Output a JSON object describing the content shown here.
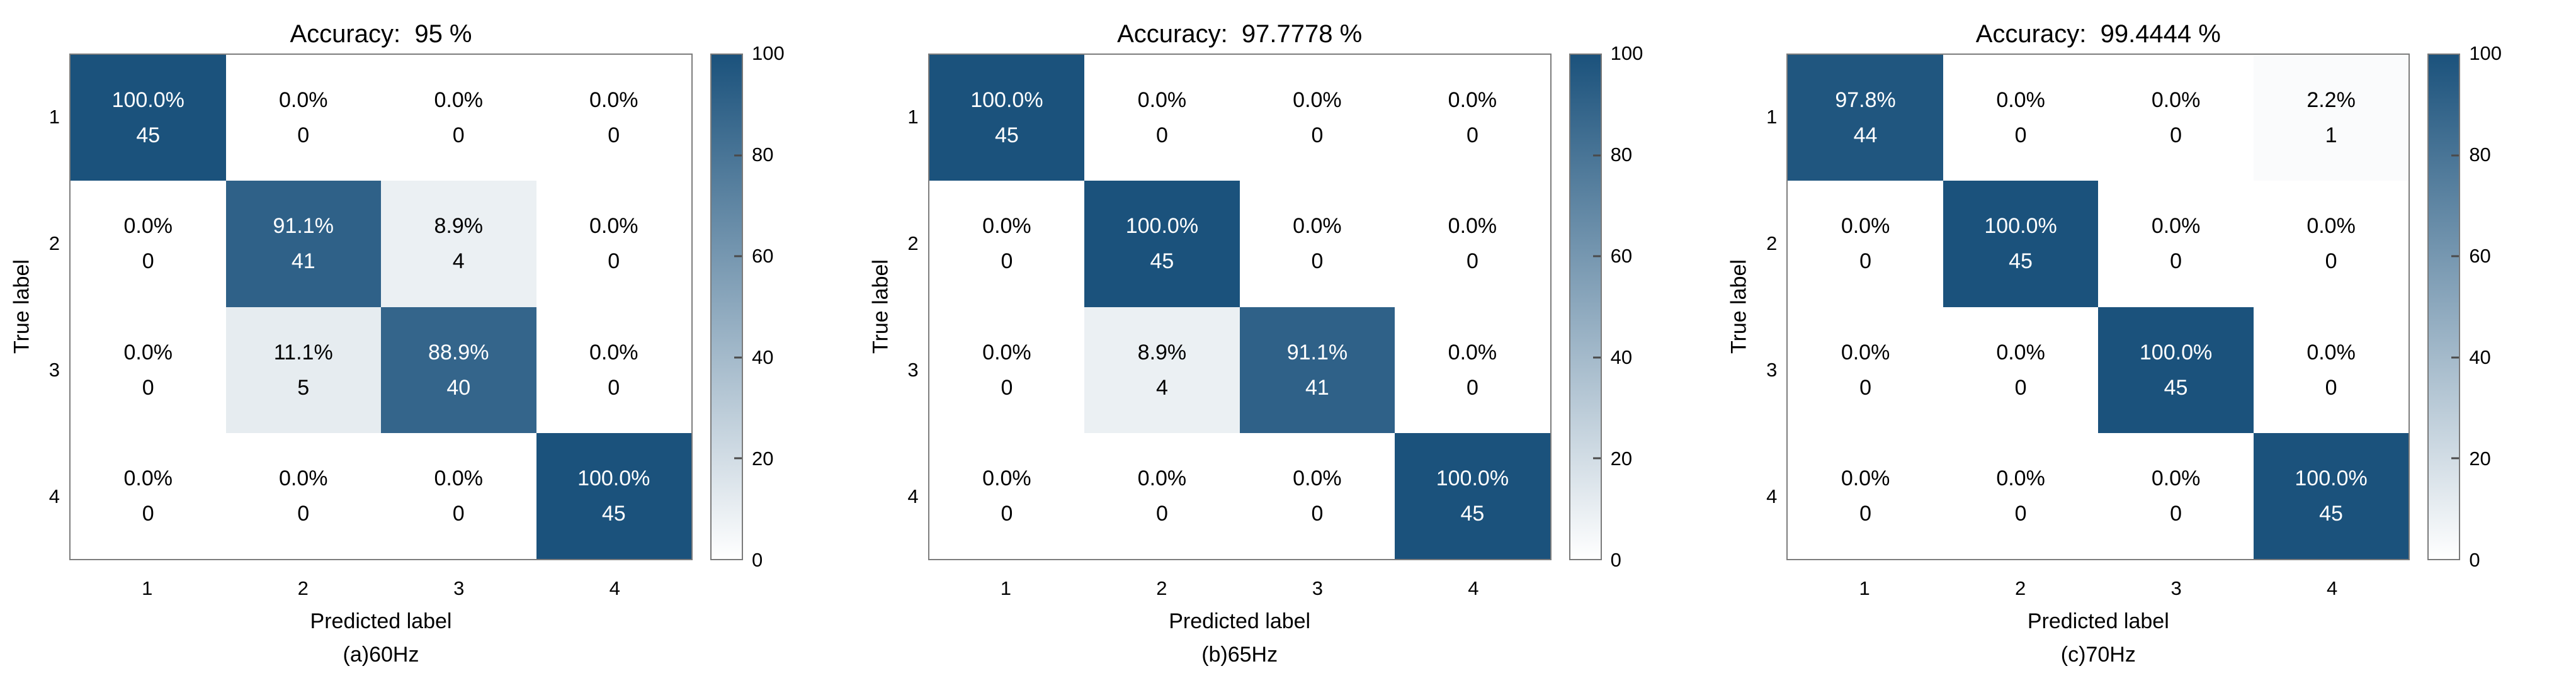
{
  "figure": {
    "background": "#FFFFFF"
  },
  "colors": {
    "heat_high": "#1B527C",
    "heat_low": "#FFFFFF",
    "cell_text_on_dark": "#FFFFFF",
    "cell_text_on_light": "#000000",
    "axis_text": "#000000",
    "plot_border": "#7D7D7D"
  },
  "chart_data": [
    {
      "type": "heatmap",
      "title": "Accuracy:  95 %",
      "xlabel": "Predicted label",
      "ylabel": "True label",
      "caption": "(a)60Hz",
      "x_ticklabels": [
        "1",
        "2",
        "3",
        "4"
      ],
      "y_ticklabels": [
        "1",
        "2",
        "3",
        "4"
      ],
      "percent_matrix": [
        [
          100.0,
          0.0,
          0.0,
          0.0
        ],
        [
          0.0,
          91.1,
          8.9,
          0.0
        ],
        [
          0.0,
          11.1,
          88.9,
          0.0
        ],
        [
          0.0,
          0.0,
          0.0,
          100.0
        ]
      ],
      "count_matrix": [
        [
          45,
          0,
          0,
          0
        ],
        [
          0,
          41,
          4,
          0
        ],
        [
          0,
          5,
          40,
          0
        ],
        [
          0,
          0,
          0,
          45
        ]
      ],
      "colorbar": {
        "min": 0,
        "max": 100,
        "ticks": [
          0,
          20,
          40,
          60,
          80,
          100
        ],
        "position": "right"
      },
      "grid": false,
      "xlim": [
        0.5,
        4.5
      ],
      "ylim": [
        0.5,
        4.5
      ]
    },
    {
      "type": "heatmap",
      "title": "Accuracy:  97.7778 %",
      "xlabel": "Predicted label",
      "ylabel": "True label",
      "caption": "(b)65Hz",
      "x_ticklabels": [
        "1",
        "2",
        "3",
        "4"
      ],
      "y_ticklabels": [
        "1",
        "2",
        "3",
        "4"
      ],
      "percent_matrix": [
        [
          100.0,
          0.0,
          0.0,
          0.0
        ],
        [
          0.0,
          100.0,
          0.0,
          0.0
        ],
        [
          0.0,
          8.9,
          91.1,
          0.0
        ],
        [
          0.0,
          0.0,
          0.0,
          100.0
        ]
      ],
      "count_matrix": [
        [
          45,
          0,
          0,
          0
        ],
        [
          0,
          45,
          0,
          0
        ],
        [
          0,
          4,
          41,
          0
        ],
        [
          0,
          0,
          0,
          45
        ]
      ],
      "colorbar": {
        "min": 0,
        "max": 100,
        "ticks": [
          0,
          20,
          40,
          60,
          80,
          100
        ],
        "position": "right"
      },
      "grid": false,
      "xlim": [
        0.5,
        4.5
      ],
      "ylim": [
        0.5,
        4.5
      ]
    },
    {
      "type": "heatmap",
      "title": "Accuracy:  99.4444 %",
      "xlabel": "Predicted label",
      "ylabel": "True label",
      "caption": "(c)70Hz",
      "x_ticklabels": [
        "1",
        "2",
        "3",
        "4"
      ],
      "y_ticklabels": [
        "1",
        "2",
        "3",
        "4"
      ],
      "percent_matrix": [
        [
          97.8,
          0.0,
          0.0,
          2.2
        ],
        [
          0.0,
          100.0,
          0.0,
          0.0
        ],
        [
          0.0,
          0.0,
          100.0,
          0.0
        ],
        [
          0.0,
          0.0,
          0.0,
          100.0
        ]
      ],
      "count_matrix": [
        [
          44,
          0,
          0,
          1
        ],
        [
          0,
          45,
          0,
          0
        ],
        [
          0,
          0,
          45,
          0
        ],
        [
          0,
          0,
          0,
          45
        ]
      ],
      "colorbar": {
        "min": 0,
        "max": 100,
        "ticks": [
          0,
          20,
          40,
          60,
          80,
          100
        ],
        "position": "right"
      },
      "grid": false,
      "xlim": [
        0.5,
        4.5
      ],
      "ylim": [
        0.5,
        4.5
      ]
    }
  ]
}
